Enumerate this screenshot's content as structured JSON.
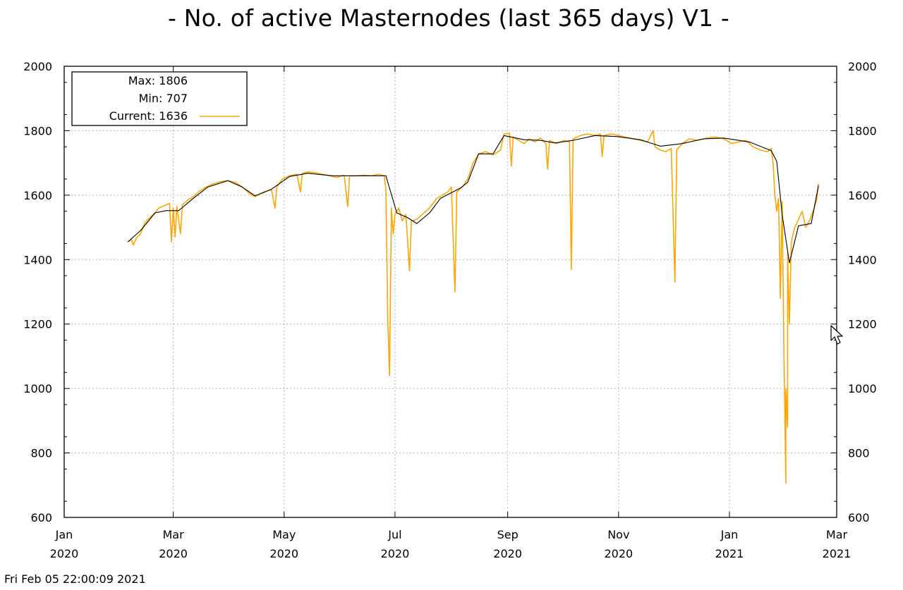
{
  "chart_data": {
    "type": "line",
    "title": "- No. of active Masternodes (last 365 days) V1 -",
    "timestamp": "Fri Feb 05 22:00:09 2021",
    "xlabel": "",
    "ylabel": "",
    "ylim": [
      600,
      2000
    ],
    "yticks": [
      600,
      800,
      1000,
      1200,
      1400,
      1600,
      1800,
      2000
    ],
    "y_axis_mirrored_right": true,
    "xlim": [
      "2020-01-01",
      "2021-03-01"
    ],
    "xticks": [
      {
        "date": "2020-01-01",
        "month": "Jan",
        "year": "2020"
      },
      {
        "date": "2020-03-01",
        "month": "Mar",
        "year": "2020"
      },
      {
        "date": "2020-05-01",
        "month": "May",
        "year": "2020"
      },
      {
        "date": "2020-07-01",
        "month": "Jul",
        "year": "2020"
      },
      {
        "date": "2020-09-01",
        "month": "Sep",
        "year": "2020"
      },
      {
        "date": "2020-11-01",
        "month": "Nov",
        "year": "2020"
      },
      {
        "date": "2021-01-01",
        "month": "Jan",
        "year": "2021"
      },
      {
        "date": "2021-03-01",
        "month": "Mar",
        "year": "2021"
      }
    ],
    "grid": true,
    "legend": {
      "position": "top-left",
      "entries": [
        {
          "label": "Max:",
          "value": "1806"
        },
        {
          "label": "Min:",
          "value": "707"
        },
        {
          "label": "Current:",
          "value": "1636"
        }
      ]
    },
    "colors": {
      "series": "#ffa500",
      "trend": "#000000",
      "grid": "#b4b4b4"
    },
    "series": [
      {
        "name": "Current",
        "color": "#ffa500",
        "points": [
          [
            "2020-02-05",
            1455
          ],
          [
            "2020-02-07",
            1462
          ],
          [
            "2020-02-08",
            1445
          ],
          [
            "2020-02-10",
            1470
          ],
          [
            "2020-02-12",
            1480
          ],
          [
            "2020-02-14",
            1510
          ],
          [
            "2020-02-16",
            1525
          ],
          [
            "2020-02-18",
            1535
          ],
          [
            "2020-02-20",
            1545
          ],
          [
            "2020-02-22",
            1560
          ],
          [
            "2020-02-24",
            1565
          ],
          [
            "2020-02-26",
            1570
          ],
          [
            "2020-02-28",
            1575
          ],
          [
            "2020-02-29",
            1455
          ],
          [
            "2020-03-01",
            1560
          ],
          [
            "2020-03-02",
            1470
          ],
          [
            "2020-03-03",
            1565
          ],
          [
            "2020-03-05",
            1480
          ],
          [
            "2020-03-06",
            1570
          ],
          [
            "2020-03-09",
            1585
          ],
          [
            "2020-03-12",
            1595
          ],
          [
            "2020-03-15",
            1610
          ],
          [
            "2020-03-19",
            1625
          ],
          [
            "2020-03-23",
            1635
          ],
          [
            "2020-03-27",
            1642
          ],
          [
            "2020-03-31",
            1645
          ],
          [
            "2020-04-04",
            1640
          ],
          [
            "2020-04-08",
            1625
          ],
          [
            "2020-04-12",
            1605
          ],
          [
            "2020-04-15",
            1595
          ],
          [
            "2020-04-18",
            1605
          ],
          [
            "2020-04-21",
            1612
          ],
          [
            "2020-04-24",
            1618
          ],
          [
            "2020-04-26",
            1560
          ],
          [
            "2020-04-27",
            1625
          ],
          [
            "2020-04-30",
            1650
          ],
          [
            "2020-05-04",
            1660
          ],
          [
            "2020-05-08",
            1665
          ],
          [
            "2020-05-10",
            1610
          ],
          [
            "2020-05-11",
            1668
          ],
          [
            "2020-05-14",
            1672
          ],
          [
            "2020-05-18",
            1670
          ],
          [
            "2020-05-22",
            1665
          ],
          [
            "2020-05-26",
            1660
          ],
          [
            "2020-05-30",
            1655
          ],
          [
            "2020-06-03",
            1662
          ],
          [
            "2020-06-05",
            1565
          ],
          [
            "2020-06-06",
            1660
          ],
          [
            "2020-06-10",
            1660
          ],
          [
            "2020-06-14",
            1662
          ],
          [
            "2020-06-18",
            1660
          ],
          [
            "2020-06-22",
            1665
          ],
          [
            "2020-06-25",
            1660
          ],
          [
            "2020-06-26",
            1620
          ],
          [
            "2020-06-27",
            1220
          ],
          [
            "2020-06-28",
            1040
          ],
          [
            "2020-06-29",
            1560
          ],
          [
            "2020-06-30",
            1480
          ],
          [
            "2020-07-01",
            1540
          ],
          [
            "2020-07-03",
            1560
          ],
          [
            "2020-07-05",
            1520
          ],
          [
            "2020-07-07",
            1540
          ],
          [
            "2020-07-09",
            1365
          ],
          [
            "2020-07-10",
            1520
          ],
          [
            "2020-07-13",
            1525
          ],
          [
            "2020-07-16",
            1540
          ],
          [
            "2020-07-20",
            1560
          ],
          [
            "2020-07-24",
            1590
          ],
          [
            "2020-07-27",
            1600
          ],
          [
            "2020-07-30",
            1610
          ],
          [
            "2020-08-01",
            1625
          ],
          [
            "2020-08-03",
            1300
          ],
          [
            "2020-08-04",
            1610
          ],
          [
            "2020-08-07",
            1625
          ],
          [
            "2020-08-10",
            1650
          ],
          [
            "2020-08-13",
            1700
          ],
          [
            "2020-08-16",
            1728
          ],
          [
            "2020-08-20",
            1735
          ],
          [
            "2020-08-24",
            1725
          ],
          [
            "2020-08-28",
            1740
          ],
          [
            "2020-08-30",
            1790
          ],
          [
            "2020-09-02",
            1792
          ],
          [
            "2020-09-03",
            1690
          ],
          [
            "2020-09-04",
            1780
          ],
          [
            "2020-09-07",
            1770
          ],
          [
            "2020-09-10",
            1760
          ],
          [
            "2020-09-13",
            1775
          ],
          [
            "2020-09-16",
            1765
          ],
          [
            "2020-09-19",
            1778
          ],
          [
            "2020-09-22",
            1760
          ],
          [
            "2020-09-23",
            1680
          ],
          [
            "2020-09-24",
            1770
          ],
          [
            "2020-09-28",
            1760
          ],
          [
            "2020-10-02",
            1770
          ],
          [
            "2020-10-05",
            1765
          ],
          [
            "2020-10-06",
            1370
          ],
          [
            "2020-10-07",
            1775
          ],
          [
            "2020-10-11",
            1785
          ],
          [
            "2020-10-15",
            1790
          ],
          [
            "2020-10-19",
            1785
          ],
          [
            "2020-10-22",
            1790
          ],
          [
            "2020-10-23",
            1720
          ],
          [
            "2020-10-24",
            1785
          ],
          [
            "2020-10-28",
            1790
          ],
          [
            "2020-11-01",
            1785
          ],
          [
            "2020-11-05",
            1780
          ],
          [
            "2020-11-09",
            1775
          ],
          [
            "2020-11-13",
            1770
          ],
          [
            "2020-11-17",
            1765
          ],
          [
            "2020-11-20",
            1800
          ],
          [
            "2020-11-21",
            1750
          ],
          [
            "2020-11-24",
            1740
          ],
          [
            "2020-11-27",
            1735
          ],
          [
            "2020-11-30",
            1745
          ],
          [
            "2020-12-02",
            1330
          ],
          [
            "2020-12-03",
            1740
          ],
          [
            "2020-12-06",
            1760
          ],
          [
            "2020-12-10",
            1775
          ],
          [
            "2020-12-14",
            1770
          ],
          [
            "2020-12-18",
            1775
          ],
          [
            "2020-12-22",
            1780
          ],
          [
            "2020-12-25",
            1780
          ],
          [
            "2020-12-29",
            1775
          ],
          [
            "2021-01-02",
            1760
          ],
          [
            "2021-01-06",
            1765
          ],
          [
            "2021-01-10",
            1770
          ],
          [
            "2021-01-14",
            1750
          ],
          [
            "2021-01-18",
            1740
          ],
          [
            "2021-01-22",
            1735
          ],
          [
            "2021-01-24",
            1745
          ],
          [
            "2021-01-25",
            1700
          ],
          [
            "2021-01-26",
            1600
          ],
          [
            "2021-01-27",
            1550
          ],
          [
            "2021-01-28",
            1590
          ],
          [
            "2021-01-29",
            1280
          ],
          [
            "2021-01-30",
            1580
          ],
          [
            "2021-01-31",
            1100
          ],
          [
            "2021-02-01",
            707
          ],
          [
            "2021-02-01",
            1000
          ],
          [
            "2021-02-02",
            880
          ],
          [
            "2021-02-02",
            1420
          ],
          [
            "2021-02-03",
            1200
          ],
          [
            "2021-02-04",
            1450
          ],
          [
            "2021-02-05",
            1480
          ],
          [
            "2021-02-06",
            1500
          ],
          [
            "2021-02-08",
            1525
          ],
          [
            "2021-02-10",
            1550
          ],
          [
            "2021-02-12",
            1500
          ],
          [
            "2021-02-14",
            1520
          ],
          [
            "2021-02-16",
            1550
          ],
          [
            "2021-02-18",
            1585
          ],
          [
            "2021-02-19",
            1636
          ]
        ]
      },
      {
        "name": "",
        "color": "#000000",
        "points": [
          [
            "2020-02-05",
            1455
          ],
          [
            "2020-02-12",
            1490
          ],
          [
            "2020-02-20",
            1545
          ],
          [
            "2020-02-26",
            1552
          ],
          [
            "2020-03-04",
            1552
          ],
          [
            "2020-03-12",
            1590
          ],
          [
            "2020-03-20",
            1625
          ],
          [
            "2020-03-31",
            1645
          ],
          [
            "2020-04-08",
            1625
          ],
          [
            "2020-04-15",
            1598
          ],
          [
            "2020-04-24",
            1618
          ],
          [
            "2020-05-04",
            1658
          ],
          [
            "2020-05-14",
            1668
          ],
          [
            "2020-05-28",
            1660
          ],
          [
            "2020-06-14",
            1660
          ],
          [
            "2020-06-26",
            1660
          ],
          [
            "2020-07-02",
            1545
          ],
          [
            "2020-07-08",
            1530
          ],
          [
            "2020-07-13",
            1512
          ],
          [
            "2020-07-20",
            1545
          ],
          [
            "2020-07-26",
            1590
          ],
          [
            "2020-08-06",
            1622
          ],
          [
            "2020-08-10",
            1640
          ],
          [
            "2020-08-16",
            1728
          ],
          [
            "2020-08-24",
            1728
          ],
          [
            "2020-08-30",
            1785
          ],
          [
            "2020-09-10",
            1772
          ],
          [
            "2020-09-19",
            1770
          ],
          [
            "2020-09-27",
            1762
          ],
          [
            "2020-10-07",
            1770
          ],
          [
            "2020-10-19",
            1785
          ],
          [
            "2020-10-31",
            1782
          ],
          [
            "2020-11-13",
            1772
          ],
          [
            "2020-11-24",
            1752
          ],
          [
            "2020-12-06",
            1760
          ],
          [
            "2020-12-18",
            1775
          ],
          [
            "2020-12-29",
            1777
          ],
          [
            "2021-01-12",
            1765
          ],
          [
            "2021-01-24",
            1738
          ],
          [
            "2021-01-27",
            1705
          ],
          [
            "2021-01-30",
            1540
          ],
          [
            "2021-02-03",
            1390
          ],
          [
            "2021-02-08",
            1505
          ],
          [
            "2021-02-15",
            1512
          ],
          [
            "2021-02-19",
            1630
          ]
        ]
      }
    ]
  }
}
